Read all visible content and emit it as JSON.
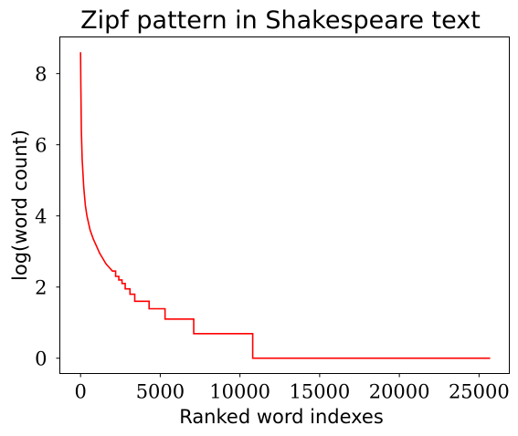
{
  "chart_data": {
    "type": "line",
    "title": "Zipf pattern in Shakespeare text",
    "xlabel": "Ranked word indexes",
    "ylabel": "log(word count)",
    "xlim": [
      -1300,
      26900
    ],
    "ylim": [
      -0.43,
      9.03
    ],
    "xticks": [
      0,
      5000,
      10000,
      15000,
      20000,
      25000
    ],
    "xtick_labels": [
      "0",
      "5000",
      "10000",
      "15000",
      "20000",
      "25000"
    ],
    "yticks": [
      0,
      2,
      4,
      6,
      8
    ],
    "ytick_labels": [
      "0",
      "2",
      "4",
      "6",
      "8"
    ],
    "grid": false,
    "series": [
      {
        "color": "#ff0000",
        "x": [
          0,
          20,
          50,
          100,
          200,
          300,
          400,
          600,
          800,
          1000,
          1200,
          1400,
          1600,
          1800,
          2000,
          2200,
          2400,
          2600,
          2800,
          3100,
          3400,
          3700,
          4300,
          5300,
          7100,
          10800,
          25700
        ],
        "y": [
          8.6,
          7.6,
          6.4,
          5.6,
          4.8,
          4.3,
          4.0,
          3.6,
          3.35,
          3.15,
          2.95,
          2.8,
          2.65,
          2.55,
          2.45,
          2.3,
          2.2,
          2.1,
          1.95,
          1.8,
          1.6,
          1.6,
          1.39,
          1.1,
          0.69,
          0.0,
          0.0
        ],
        "steps_after_index": 14
      }
    ]
  }
}
